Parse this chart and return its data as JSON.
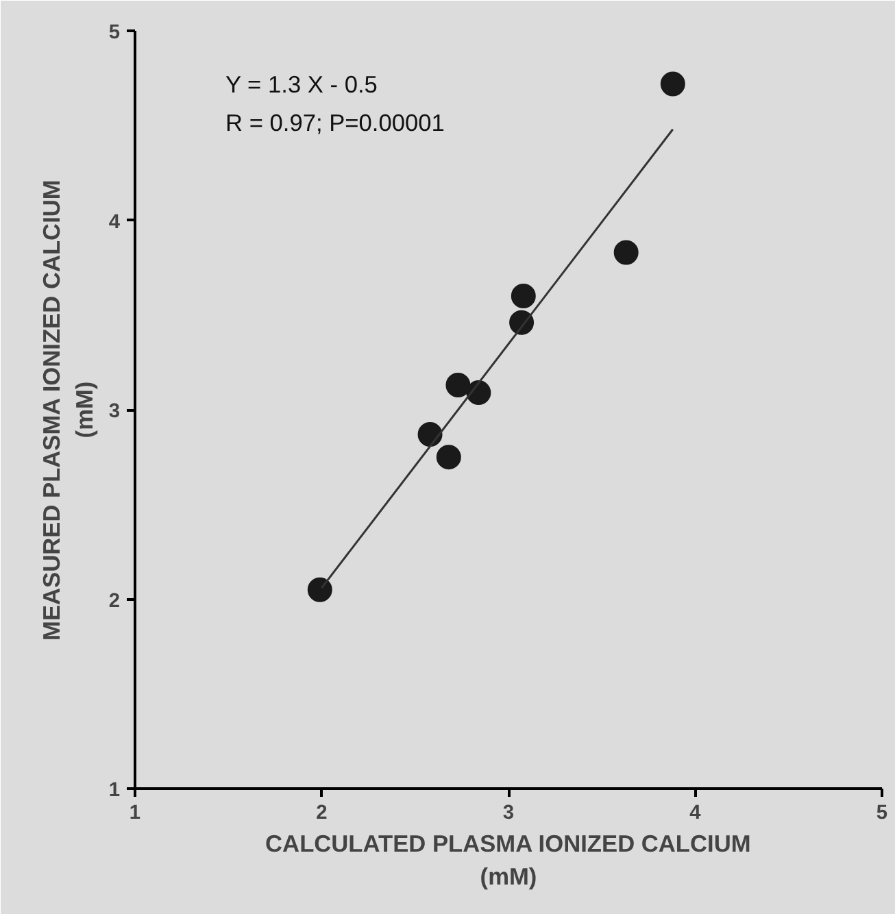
{
  "chart_data": {
    "type": "scatter",
    "xlabel": "CALCULATED PLASMA IONIZED CALCIUM\n(mM)",
    "ylabel": "MEASURED PLASMA IONIZED CALCIUM\n(mM)",
    "annotations": [
      "Y = 1.3 X - 0.5",
      "R = 0.97; P=0.00001"
    ],
    "xlim": [
      1,
      5
    ],
    "ylim": [
      1,
      5
    ],
    "xticks": [
      1,
      2,
      3,
      4,
      5
    ],
    "yticks": [
      1,
      2,
      3,
      4,
      5
    ],
    "grid": false,
    "series": [
      {
        "marker": "circle",
        "color": "#1a1a1a",
        "x": [
          1.99,
          2.58,
          2.68,
          2.73,
          2.84,
          3.07,
          3.08,
          3.63,
          3.88
        ],
        "values": [
          2.05,
          2.87,
          2.75,
          3.13,
          3.09,
          3.46,
          3.6,
          3.83,
          4.72
        ]
      },
      {
        "type": "line",
        "marker": "none",
        "color": "#333333",
        "line_style": "solid",
        "x": [
          2.0,
          3.88
        ],
        "values": [
          2.06,
          4.48
        ]
      }
    ]
  }
}
